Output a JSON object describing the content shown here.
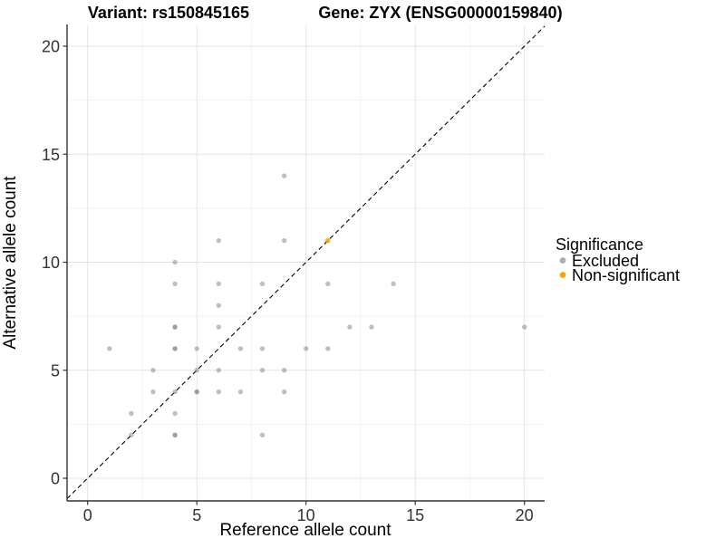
{
  "title": {
    "variant": "Variant: rs150845165",
    "gene": "Gene: ZYX (ENSG00000159840)"
  },
  "axes": {
    "x_label": "Reference allele count",
    "y_label": "Alternative allele count",
    "x_ticks": [
      0,
      5,
      10,
      15,
      20
    ],
    "y_ticks": [
      0,
      5,
      10,
      15,
      20
    ],
    "x_minor": [
      2.5,
      7.5,
      12.5,
      17.5
    ],
    "y_minor": [
      2.5,
      7.5,
      12.5,
      17.5
    ]
  },
  "legend": {
    "title": "Significance",
    "items": [
      {
        "label": "Excluded",
        "color": "#aeaeae"
      },
      {
        "label": "Non-significant",
        "color": "#FFA500"
      }
    ]
  },
  "colors": {
    "axis_line": "#333333",
    "major_grid": "#e4e4e4",
    "minor_grid": "#f1f1f1",
    "identity_line": "#000000",
    "excluded_point": "#808080",
    "nonsig_point": "#FFA500"
  },
  "chart_data": {
    "type": "scatter",
    "title": "Variant: rs150845165 | Gene: ZYX (ENSG00000159840)",
    "xlabel": "Reference allele count",
    "ylabel": "Alternative allele count",
    "xlim": [
      -1,
      21
    ],
    "ylim": [
      -1,
      21
    ],
    "grid": true,
    "legend_position": "right",
    "identity_line": {
      "shown": true,
      "style": "dashed",
      "equation": "y = x"
    },
    "series": [
      {
        "name": "Excluded",
        "color": "#808080",
        "opacity": 0.5,
        "points": [
          [
            1,
            6
          ],
          [
            2,
            2
          ],
          [
            2,
            3
          ],
          [
            3,
            4
          ],
          [
            3,
            5
          ],
          [
            4,
            2
          ],
          [
            4,
            2
          ],
          [
            4,
            3
          ],
          [
            4,
            4
          ],
          [
            4,
            6
          ],
          [
            4,
            6
          ],
          [
            4,
            7
          ],
          [
            4,
            7
          ],
          [
            4,
            9
          ],
          [
            4,
            10
          ],
          [
            5,
            4
          ],
          [
            5,
            4
          ],
          [
            5,
            5
          ],
          [
            5,
            6
          ],
          [
            6,
            4
          ],
          [
            6,
            5
          ],
          [
            6,
            7
          ],
          [
            6,
            8
          ],
          [
            6,
            9
          ],
          [
            6,
            11
          ],
          [
            7,
            4
          ],
          [
            7,
            6
          ],
          [
            8,
            2
          ],
          [
            8,
            5
          ],
          [
            8,
            6
          ],
          [
            8,
            9
          ],
          [
            9,
            4
          ],
          [
            9,
            5
          ],
          [
            9,
            11
          ],
          [
            9,
            14
          ],
          [
            10,
            6
          ],
          [
            11,
            6
          ],
          [
            11,
            9
          ],
          [
            12,
            7
          ],
          [
            13,
            7
          ],
          [
            14,
            9
          ],
          [
            20,
            7
          ]
        ]
      },
      {
        "name": "Non-significant",
        "color": "#FFA500",
        "opacity": 0.9,
        "points": [
          [
            11,
            11
          ]
        ]
      }
    ]
  }
}
